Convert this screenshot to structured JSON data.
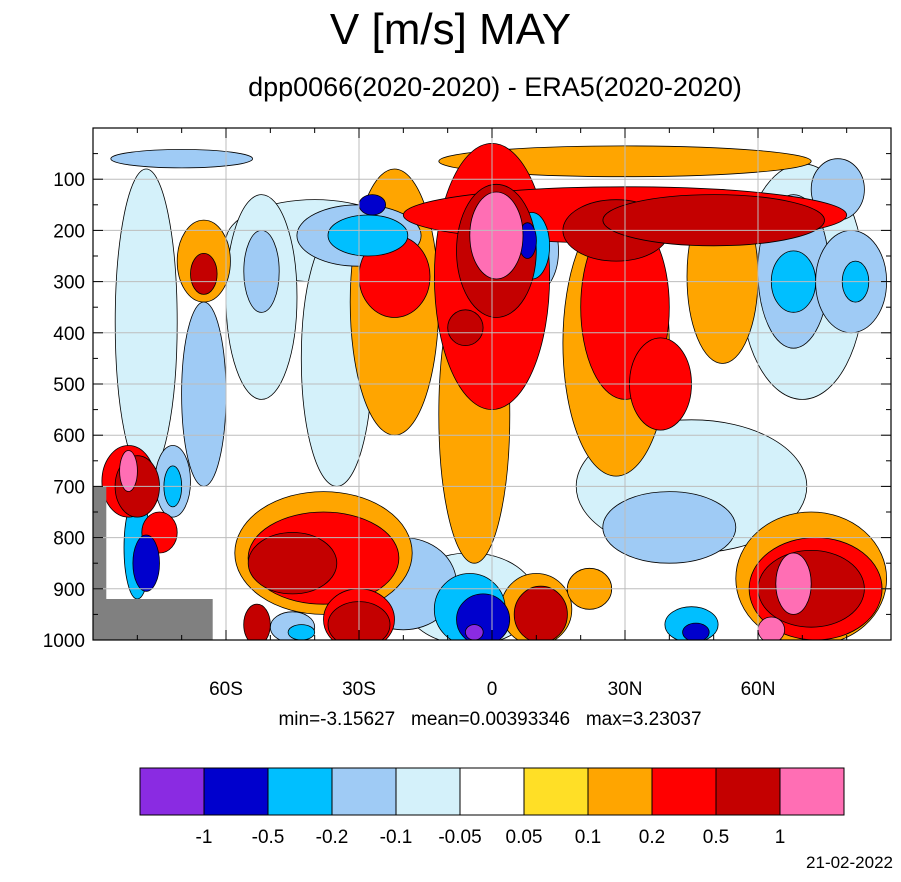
{
  "title": "V [m/s] MAY",
  "subtitle": "dpp0066(2020-2020) - ERA5(2020-2020)",
  "stats_text": "min=-3.15627   mean=0.00393346   max=3.23037",
  "date": "21-02-2022",
  "chart_data": {
    "type": "heatmap",
    "title": "V [m/s] MAY",
    "subtitle": "dpp0066(2020-2020) - ERA5(2020-2020)",
    "x_axis": {
      "range": [
        -90,
        90
      ],
      "ticks": [
        -60,
        -30,
        0,
        30,
        60
      ],
      "tick_labels": [
        "60S",
        "30S",
        "0",
        "30N",
        "60N"
      ]
    },
    "y_axis": {
      "range": [
        0,
        1000
      ],
      "reversed": true,
      "ticks": [
        100,
        200,
        300,
        400,
        500,
        600,
        700,
        800,
        900,
        1000
      ],
      "tick_labels": [
        "100",
        "200",
        "300",
        "400",
        "500",
        "600",
        "700",
        "800",
        "900",
        "1000"
      ]
    },
    "grid": true,
    "stats": {
      "min": -3.15627,
      "mean": 0.00393346,
      "max": 3.23037
    },
    "colorbar": {
      "placement": "bottom",
      "boundaries": [
        -1,
        -0.5,
        -0.2,
        -0.1,
        -0.05,
        0.05,
        0.1,
        0.2,
        0.5,
        1
      ],
      "boundary_labels": [
        "-1",
        "-0.5",
        "-0.2",
        "-0.1",
        "-0.05",
        "0.05",
        "0.1",
        "0.2",
        "0.5",
        "1"
      ],
      "colors": [
        "#8a2be2",
        "#0000cd",
        "#00bfff",
        "#9fcbf5",
        "#d4f1fa",
        "#ffffff",
        "#ffdf26",
        "#ffa500",
        "#ff0000",
        "#c40000",
        "#ff6eb4"
      ]
    },
    "masked_color": "#808080",
    "features": [
      {
        "lat": 1,
        "p": 210,
        "dlat": 6,
        "dp": 85,
        "level": 1
      },
      {
        "lat": 1,
        "p": 240,
        "dlat": 9,
        "dp": 130,
        "level": 0.5
      },
      {
        "lat": 0,
        "p": 290,
        "dlat": 13,
        "dp": 260,
        "level": 0.2
      },
      {
        "lat": -4,
        "p": 560,
        "dlat": 8,
        "dp": 290,
        "level": 0.1
      },
      {
        "lat": 28,
        "p": 420,
        "dlat": 12,
        "dp": 260,
        "level": 0.1
      },
      {
        "lat": 30,
        "p": 350,
        "dlat": 10,
        "dp": 180,
        "level": 0.2
      },
      {
        "lat": 30,
        "p": 170,
        "dlat": 50,
        "dp": 55,
        "level": 0.2
      },
      {
        "lat": 28,
        "p": 200,
        "dlat": 12,
        "dp": 60,
        "level": 0.5
      },
      {
        "lat": 52,
        "p": 290,
        "dlat": 8,
        "dp": 170,
        "level": 0.1
      },
      {
        "lat": 50,
        "p": 180,
        "dlat": 25,
        "dp": 50,
        "level": 0.5
      },
      {
        "lat": 30,
        "p": 65,
        "dlat": 42,
        "dp": 30,
        "level": 0.1
      },
      {
        "lat": 38,
        "p": 500,
        "dlat": 7,
        "dp": 90,
        "level": 0.2
      },
      {
        "lat": -65,
        "p": 260,
        "dlat": 6,
        "dp": 80,
        "level": 0.1
      },
      {
        "lat": -65,
        "p": 285,
        "dlat": 3,
        "dp": 40,
        "level": 0.5
      },
      {
        "lat": -22,
        "p": 290,
        "dlat": 8,
        "dp": 80,
        "level": 0.2
      },
      {
        "lat": -22,
        "p": 340,
        "dlat": 10,
        "dp": 260,
        "level": 0.1
      },
      {
        "lat": -6,
        "p": 390,
        "dlat": 4,
        "dp": 35,
        "level": 0.5
      },
      {
        "lat": -40,
        "p": 220,
        "dlat": 20,
        "dp": 80,
        "level": -0.05
      },
      {
        "lat": -30,
        "p": 210,
        "dlat": 14,
        "dp": 60,
        "level": -0.1
      },
      {
        "lat": -28,
        "p": 210,
        "dlat": 9,
        "dp": 40,
        "level": -0.2
      },
      {
        "lat": -27,
        "p": 150,
        "dlat": 3,
        "dp": 20,
        "level": -0.5
      },
      {
        "lat": 9,
        "p": 240,
        "dlat": 6,
        "dp": 85,
        "level": -0.1
      },
      {
        "lat": 9,
        "p": 230,
        "dlat": 4,
        "dp": 65,
        "level": -0.2
      },
      {
        "lat": 8,
        "p": 220,
        "dlat": 2,
        "dp": 35,
        "level": -0.5
      },
      {
        "lat": -78,
        "p": 380,
        "dlat": 7,
        "dp": 300,
        "level": -0.05
      },
      {
        "lat": -52,
        "p": 330,
        "dlat": 8,
        "dp": 200,
        "level": -0.05
      },
      {
        "lat": -52,
        "p": 280,
        "dlat": 4,
        "dp": 80,
        "level": -0.1
      },
      {
        "lat": -65,
        "p": 520,
        "dlat": 5,
        "dp": 180,
        "level": -0.1
      },
      {
        "lat": -35,
        "p": 450,
        "dlat": 8,
        "dp": 250,
        "level": -0.05
      },
      {
        "lat": -5,
        "p": 580,
        "dlat": 5,
        "dp": 200,
        "level": -0.05
      },
      {
        "lat": 70,
        "p": 300,
        "dlat": 14,
        "dp": 230,
        "level": -0.05
      },
      {
        "lat": 68,
        "p": 280,
        "dlat": 8,
        "dp": 150,
        "level": -0.1
      },
      {
        "lat": 68,
        "p": 300,
        "dlat": 5,
        "dp": 60,
        "level": -0.2
      },
      {
        "lat": 81,
        "p": 300,
        "dlat": 8,
        "dp": 100,
        "level": -0.1
      },
      {
        "lat": 82,
        "p": 300,
        "dlat": 3,
        "dp": 40,
        "level": -0.2
      },
      {
        "lat": 78,
        "p": 120,
        "dlat": 6,
        "dp": 60,
        "level": -0.1
      },
      {
        "lat": -70,
        "p": 60,
        "dlat": 16,
        "dp": 18,
        "level": -0.1
      },
      {
        "lat": 45,
        "p": 700,
        "dlat": 26,
        "dp": 130,
        "level": -0.05
      },
      {
        "lat": 40,
        "p": 780,
        "dlat": 15,
        "dp": 70,
        "level": -0.1
      },
      {
        "lat": -20,
        "p": 890,
        "dlat": 12,
        "dp": 90,
        "level": -0.1
      },
      {
        "lat": -5,
        "p": 920,
        "dlat": 15,
        "dp": 90,
        "level": -0.05
      },
      {
        "lat": -5,
        "p": 940,
        "dlat": 8,
        "dp": 70,
        "level": -0.2
      },
      {
        "lat": -2,
        "p": 960,
        "dlat": 6,
        "dp": 50,
        "level": -0.5
      },
      {
        "lat": -4,
        "p": 985,
        "dlat": 2,
        "dp": 15,
        "level": -1
      },
      {
        "lat": -45,
        "p": 975,
        "dlat": 5,
        "dp": 30,
        "level": -0.1
      },
      {
        "lat": -43,
        "p": 985,
        "dlat": 3,
        "dp": 15,
        "level": -0.2
      },
      {
        "lat": 45,
        "p": 970,
        "dlat": 6,
        "dp": 35,
        "level": -0.2
      },
      {
        "lat": 46,
        "p": 985,
        "dlat": 3,
        "dp": 18,
        "level": -0.5
      },
      {
        "lat": -80,
        "p": 820,
        "dlat": 3,
        "dp": 100,
        "level": -0.2
      },
      {
        "lat": -78,
        "p": 850,
        "dlat": 3,
        "dp": 55,
        "level": -0.5
      },
      {
        "lat": -72,
        "p": 690,
        "dlat": 4,
        "dp": 70,
        "level": -0.1
      },
      {
        "lat": -72,
        "p": 700,
        "dlat": 2,
        "dp": 40,
        "level": -0.2
      },
      {
        "lat": -38,
        "p": 830,
        "dlat": 20,
        "dp": 120,
        "level": 0.1
      },
      {
        "lat": -38,
        "p": 840,
        "dlat": 17,
        "dp": 90,
        "level": 0.2
      },
      {
        "lat": -45,
        "p": 850,
        "dlat": 10,
        "dp": 60,
        "level": 0.5
      },
      {
        "lat": -30,
        "p": 960,
        "dlat": 8,
        "dp": 60,
        "level": 0.2
      },
      {
        "lat": -30,
        "p": 970,
        "dlat": 7,
        "dp": 45,
        "level": 0.5
      },
      {
        "lat": -53,
        "p": 970,
        "dlat": 3,
        "dp": 40,
        "level": 0.5
      },
      {
        "lat": 10,
        "p": 940,
        "dlat": 8,
        "dp": 70,
        "level": 0.1
      },
      {
        "lat": 11,
        "p": 950,
        "dlat": 6,
        "dp": 55,
        "level": 0.5
      },
      {
        "lat": 22,
        "p": 900,
        "dlat": 5,
        "dp": 40,
        "level": 0.1
      },
      {
        "lat": 72,
        "p": 880,
        "dlat": 17,
        "dp": 130,
        "level": 0.1
      },
      {
        "lat": 73,
        "p": 900,
        "dlat": 15,
        "dp": 100,
        "level": 0.2
      },
      {
        "lat": 72,
        "p": 900,
        "dlat": 12,
        "dp": 75,
        "level": 0.5
      },
      {
        "lat": 68,
        "p": 890,
        "dlat": 4,
        "dp": 60,
        "level": 1
      },
      {
        "lat": 63,
        "p": 980,
        "dlat": 3,
        "dp": 25,
        "level": 1
      },
      {
        "lat": -82,
        "p": 690,
        "dlat": 6,
        "dp": 70,
        "level": 0.2
      },
      {
        "lat": -80,
        "p": 700,
        "dlat": 5,
        "dp": 60,
        "level": 0.5
      },
      {
        "lat": -82,
        "p": 670,
        "dlat": 2,
        "dp": 40,
        "level": 1
      },
      {
        "lat": -75,
        "p": 790,
        "dlat": 4,
        "dp": 40,
        "level": 0.2
      }
    ]
  }
}
